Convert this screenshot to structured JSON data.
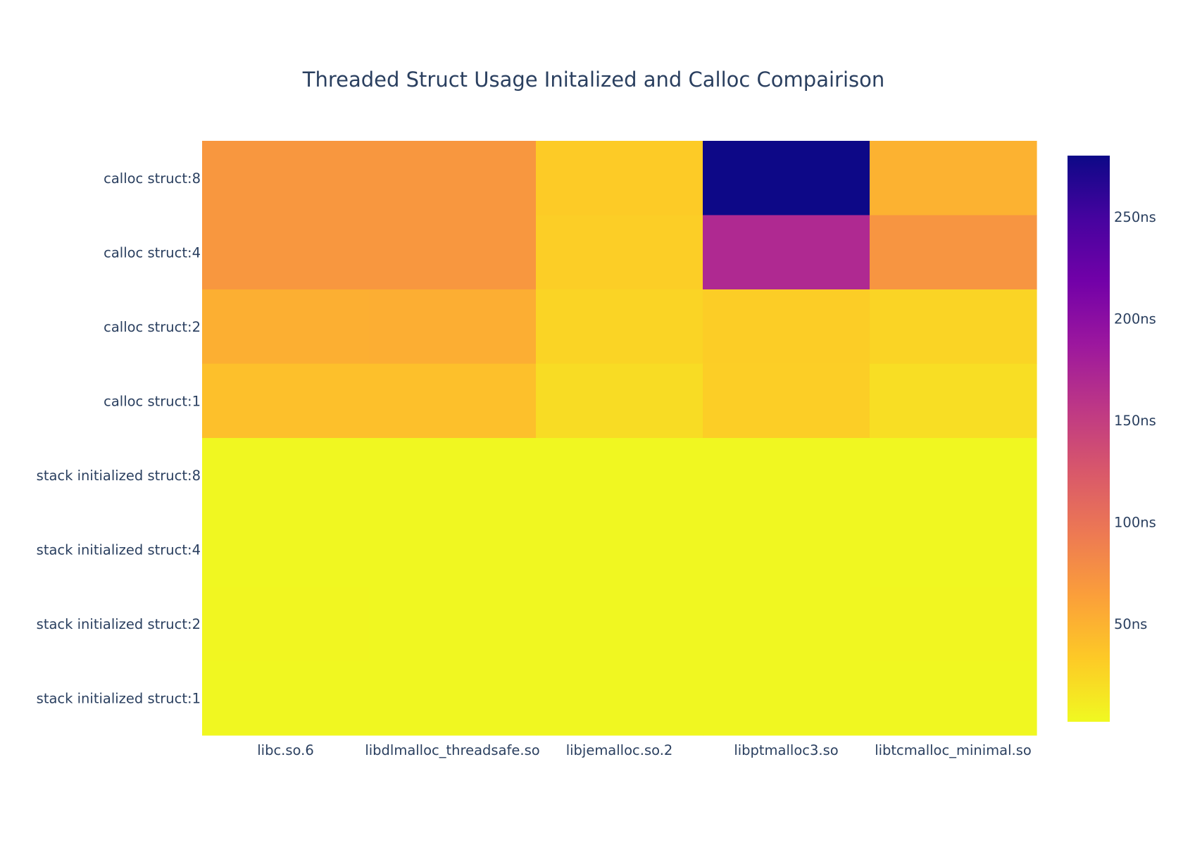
{
  "chart_data": {
    "type": "heatmap",
    "title": "Threaded Struct Usage Initalized and Calloc Compairison",
    "x_categories": [
      "libc.so.6",
      "libdlmalloc_threadsafe.so",
      "libjemalloc.so.2",
      "libptmalloc3.so",
      "libtcmalloc_minimal.so"
    ],
    "y_categories": [
      "calloc struct:8",
      "calloc struct:4",
      "calloc struct:2",
      "calloc struct:1",
      "stack initialized struct:8",
      "stack initialized struct:4",
      "stack initialized struct:2",
      "stack initialized struct:1"
    ],
    "values": [
      [
        70,
        70,
        32,
        280,
        50
      ],
      [
        70,
        70,
        30,
        170,
        72
      ],
      [
        52,
        53,
        26,
        31,
        26
      ],
      [
        40,
        40,
        21,
        30,
        20
      ],
      [
        3,
        3,
        3,
        3,
        3
      ],
      [
        3,
        3,
        3,
        3,
        3
      ],
      [
        4,
        3,
        3,
        3,
        4
      ],
      [
        3,
        3,
        3,
        3,
        3
      ]
    ],
    "colorscale": [
      "#0d0887",
      "#46039f",
      "#7201a8",
      "#9c179e",
      "#bd3786",
      "#d8576b",
      "#ed7953",
      "#fb9f3a",
      "#fdca26",
      "#f0f921"
    ],
    "colorbar": {
      "range": [
        2,
        280
      ],
      "tickvals": [
        50,
        100,
        150,
        200,
        250
      ],
      "ticktext": [
        "50ns",
        "100ns",
        "150ns",
        "200ns",
        "250ns"
      ]
    }
  }
}
